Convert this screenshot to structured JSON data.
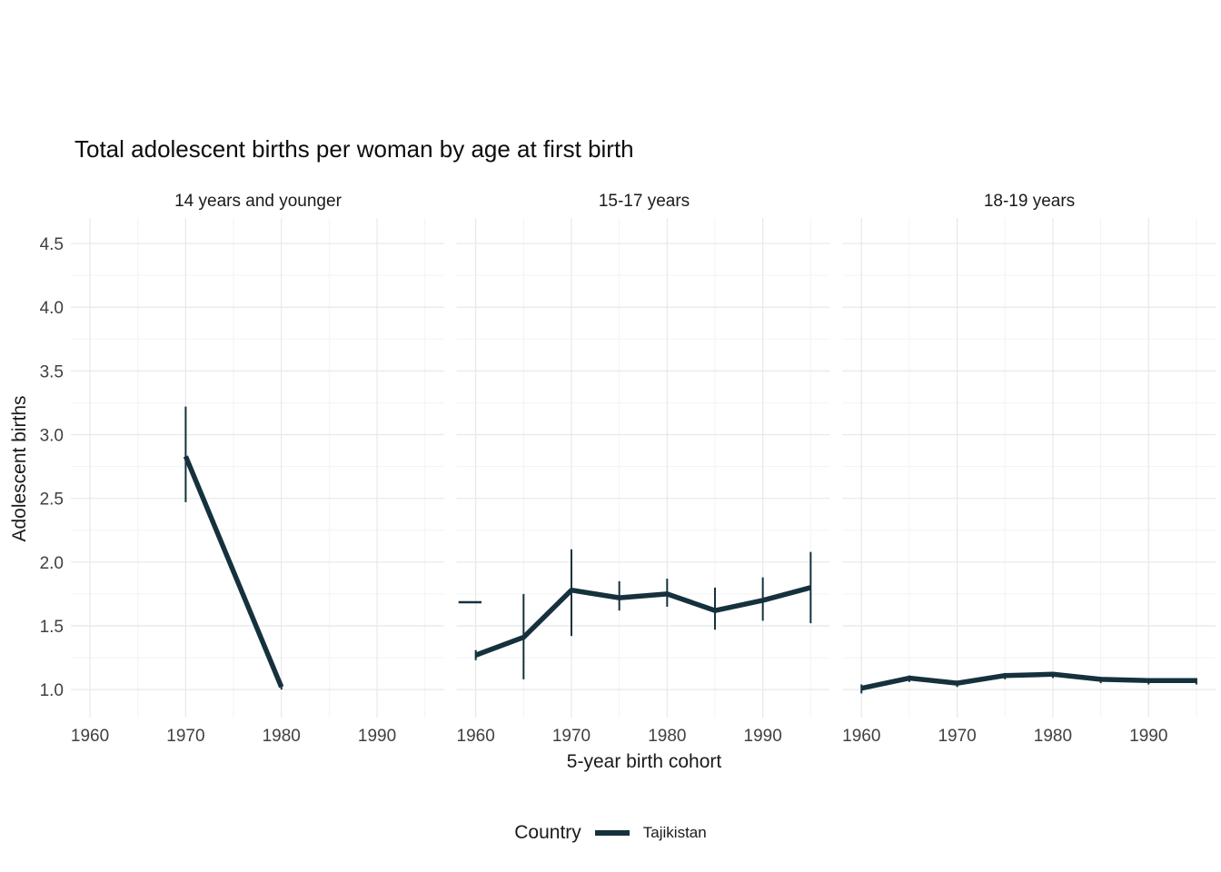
{
  "chart_data": {
    "type": "line",
    "title": "Total adolescent births per woman by age at first birth",
    "xlabel": "5-year birth cohort",
    "ylabel": "Adolescent births",
    "series_color": "#15313d",
    "grid": {
      "major_color": "#e8e8e8",
      "minor_color": "#f3f3f3"
    },
    "x_domain": [
      1958,
      1997
    ],
    "x_ticks": [
      1960,
      1970,
      1980,
      1990
    ],
    "x_minor": [
      1965,
      1975,
      1985,
      1995
    ],
    "y_domain": [
      0.78,
      4.7
    ],
    "y_ticks": [
      1.0,
      1.5,
      2.0,
      2.5,
      3.0,
      3.5,
      4.0,
      4.5
    ],
    "y_tick_labels": [
      "1.0",
      "1.5",
      "2.0",
      "2.5",
      "3.0",
      "3.5",
      "4.0",
      "4.5"
    ],
    "y_minor": [
      1.25,
      1.75,
      2.25,
      2.75,
      3.25,
      3.75,
      4.25
    ],
    "legend": {
      "title": "Country",
      "entries": [
        {
          "label": "Tajikistan",
          "color": "#15313d"
        }
      ]
    },
    "facets": [
      {
        "label": "14 years and younger",
        "points": [
          {
            "x": 1970,
            "y": 2.83,
            "ymin": 2.47,
            "ymax": 3.22
          },
          {
            "x": 1980,
            "y": 1.02,
            "ymin": 1.0,
            "ymax": 1.05
          }
        ]
      },
      {
        "label": "15-17 years",
        "dash": {
          "x0": 1958.2,
          "x1": 1960.6,
          "y": 1.685
        },
        "points": [
          {
            "x": 1960,
            "y": 1.27,
            "ymin": 1.23,
            "ymax": 1.31
          },
          {
            "x": 1965,
            "y": 1.41,
            "ymin": 1.08,
            "ymax": 1.75
          },
          {
            "x": 1970,
            "y": 1.78,
            "ymin": 1.42,
            "ymax": 2.1
          },
          {
            "x": 1975,
            "y": 1.72,
            "ymin": 1.62,
            "ymax": 1.85
          },
          {
            "x": 1980,
            "y": 1.75,
            "ymin": 1.65,
            "ymax": 1.87
          },
          {
            "x": 1985,
            "y": 1.62,
            "ymin": 1.47,
            "ymax": 1.8
          },
          {
            "x": 1990,
            "y": 1.7,
            "ymin": 1.54,
            "ymax": 1.88
          },
          {
            "x": 1995,
            "y": 1.8,
            "ymin": 1.52,
            "ymax": 2.08
          }
        ]
      },
      {
        "label": "18-19 years",
        "points": [
          {
            "x": 1960,
            "y": 1.01,
            "ymin": 0.97,
            "ymax": 1.04
          },
          {
            "x": 1965,
            "y": 1.09,
            "ymin": 1.06,
            "ymax": 1.11
          },
          {
            "x": 1970,
            "y": 1.05,
            "ymin": 1.02,
            "ymax": 1.07
          },
          {
            "x": 1975,
            "y": 1.11,
            "ymin": 1.08,
            "ymax": 1.13
          },
          {
            "x": 1980,
            "y": 1.12,
            "ymin": 1.09,
            "ymax": 1.14
          },
          {
            "x": 1985,
            "y": 1.08,
            "ymin": 1.05,
            "ymax": 1.1
          },
          {
            "x": 1990,
            "y": 1.07,
            "ymin": 1.04,
            "ymax": 1.09
          },
          {
            "x": 1995,
            "y": 1.07,
            "ymin": 1.04,
            "ymax": 1.09
          }
        ]
      }
    ]
  }
}
